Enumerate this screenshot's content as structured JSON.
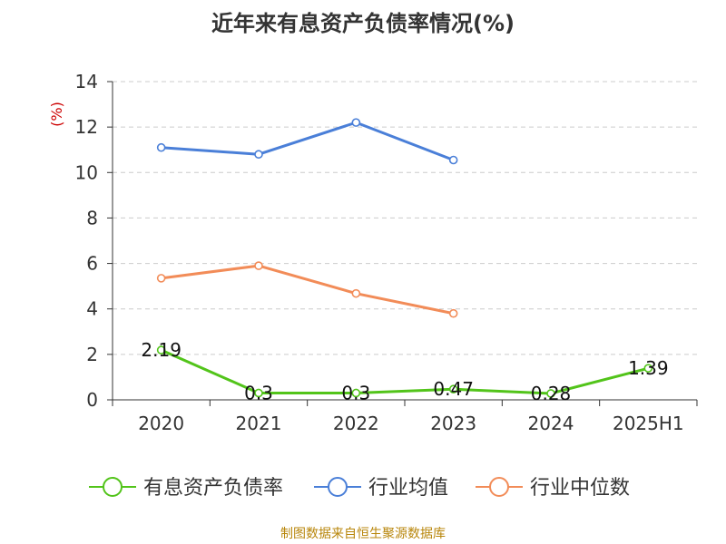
{
  "title": "近年来有息资产负债率情况(%)",
  "source": "制图数据来自恒生聚源数据库",
  "colors": {
    "background": "#ffffff",
    "axis": "#333333",
    "grid": "#cccccc",
    "title": "#333333",
    "ylabel": "#cc0000",
    "source": "#b8860b"
  },
  "chart_data": {
    "type": "line",
    "title": "近年来有息资产负债率情况(%)",
    "ylabel": "(%)",
    "xlabel": "",
    "categories": [
      "2020",
      "2021",
      "2022",
      "2023",
      "2024",
      "2025H1"
    ],
    "ylim": [
      0,
      14
    ],
    "yticks": [
      0,
      2,
      4,
      6,
      8,
      10,
      12,
      14
    ],
    "grid": "horizontal-dashed",
    "legend_position": "bottom",
    "series": [
      {
        "name": "有息资产负债率",
        "color": "#52c41a",
        "values": [
          2.19,
          0.3,
          0.3,
          0.47,
          0.28,
          1.39
        ],
        "labels": [
          "2.19",
          "0.3",
          "0.3",
          "0.47",
          "0.28",
          "1.39"
        ]
      },
      {
        "name": "行业均值",
        "color": "#4a7fd8",
        "values": [
          11.1,
          10.8,
          12.2,
          10.55,
          null,
          null
        ],
        "labels": null
      },
      {
        "name": "行业中位数",
        "color": "#f28c58",
        "values": [
          5.35,
          5.9,
          4.68,
          3.8,
          null,
          null
        ],
        "labels": null
      }
    ]
  }
}
